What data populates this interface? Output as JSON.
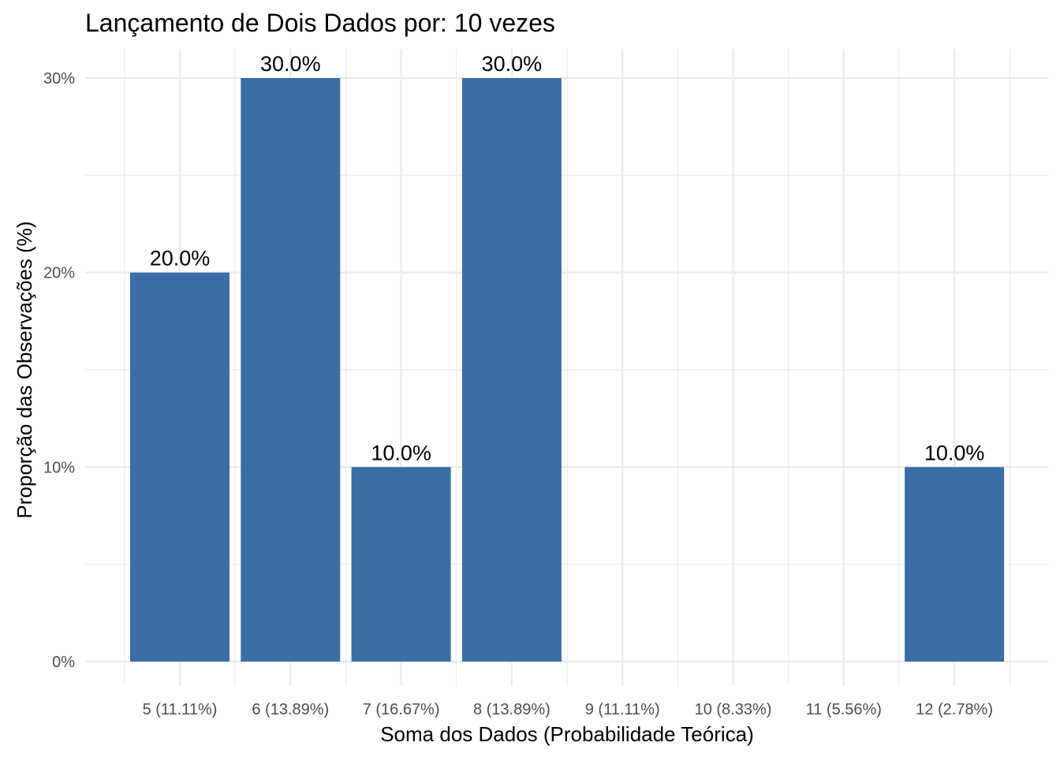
{
  "chart_data": {
    "type": "bar",
    "title": "Lançamento de Dois Dados por: 10 vezes",
    "xlabel": "Soma dos Dados (Probabilidade Teórica)",
    "ylabel": "Proporção das Observações (%)",
    "categories": [
      "5 (11.11%)",
      "6 (13.89%)",
      "7 (16.67%)",
      "8 (13.89%)",
      "9 (11.11%)",
      "10 (8.33%)",
      "11 (5.56%)",
      "12 (2.78%)"
    ],
    "values": [
      20,
      30,
      10,
      30,
      0,
      0,
      0,
      10
    ],
    "data_labels": [
      "20.0%",
      "30.0%",
      "10.0%",
      "30.0%",
      "",
      "",
      "",
      "10.0%"
    ],
    "ylim": [
      0,
      30
    ],
    "y_ticks": [
      0,
      10,
      20,
      30
    ],
    "y_tick_labels": [
      "0%",
      "10%",
      "20%",
      "30%"
    ],
    "grid": true,
    "legend": "none",
    "bar_color": "#3a6ea5",
    "grid_color": "#ebebeb"
  }
}
